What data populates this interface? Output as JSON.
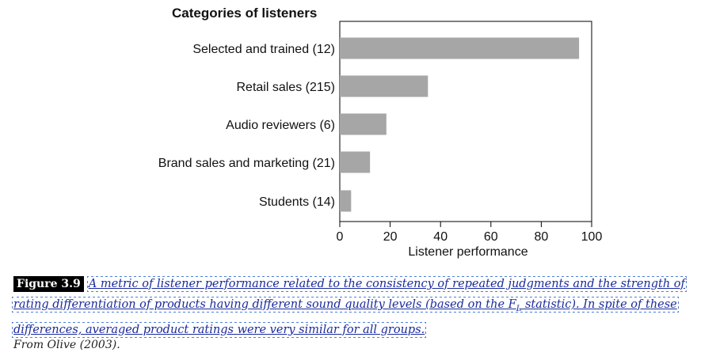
{
  "chart_data": {
    "type": "bar",
    "orientation": "horizontal",
    "title": "Categories of listeners",
    "categories": [
      "Selected and trained (12)",
      "Retail sales (215)",
      "Audio reviewers (6)",
      "Brand sales and marketing (21)",
      "Students (14)"
    ],
    "values": [
      95,
      35,
      18.5,
      12,
      4.5
    ],
    "xlabel": "Listener performance",
    "ylabel": "",
    "xlim": [
      0,
      100
    ],
    "xticks": [
      "0",
      "20",
      "40",
      "60",
      "80",
      "100"
    ],
    "grid": false,
    "bar_color": "#a6a6a6"
  },
  "caption": {
    "badge": "Figure 3.9",
    "text_part1": "A metric of listener performance related to the consistency of repeated judgments and the strength of rating differentiation of products having different sound quality levels (based on the F",
    "subscript": "L",
    "text_part2": " statistic). In spite of these differences, averaged product ratings were very similar for all groups.",
    "source": "From Olive (2003)."
  }
}
